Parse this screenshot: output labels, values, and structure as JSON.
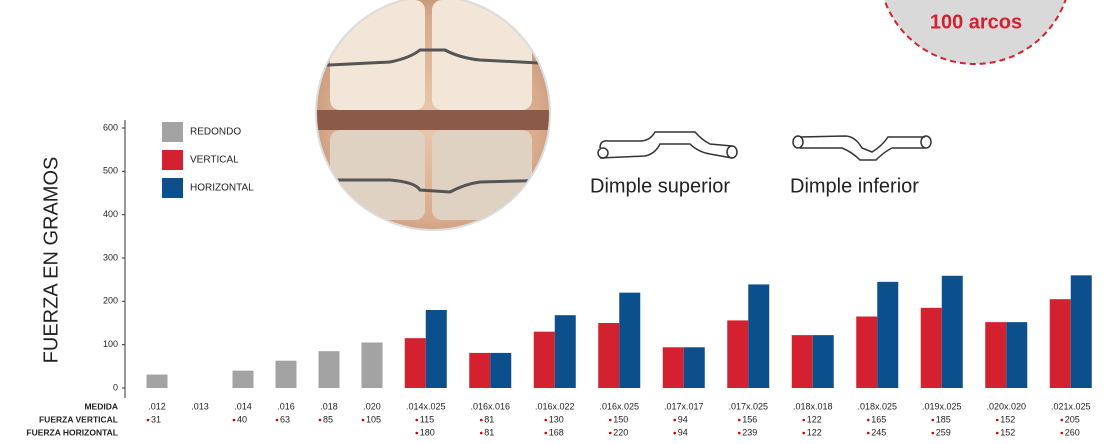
{
  "chart_data": {
    "type": "bar",
    "y_label": "FUERZA EN GRAMOS",
    "categories": [
      ".012",
      ".013",
      ".014",
      ".016",
      ".018",
      ".020",
      ".014x.025",
      ".016x.016",
      ".016x.022",
      ".016x.025",
      ".017x.017",
      ".017x.025",
      ".018x.018",
      ".018x.025",
      ".019x.025",
      ".020x.020",
      ".021x.025"
    ],
    "series": [
      {
        "name": "REDONDO",
        "color": "#a3a3a3",
        "values": [
          31,
          null,
          40,
          63,
          85,
          105,
          null,
          null,
          null,
          null,
          null,
          null,
          null,
          null,
          null,
          null,
          null
        ]
      },
      {
        "name": "VERTICAL",
        "color": "#d4212f",
        "values": [
          null,
          null,
          null,
          null,
          null,
          null,
          115,
          81,
          130,
          150,
          94,
          156,
          122,
          165,
          185,
          152,
          205
        ]
      },
      {
        "name": "HORIZONTAL",
        "color": "#0b4f8c",
        "values": [
          null,
          null,
          null,
          null,
          null,
          null,
          180,
          81,
          168,
          220,
          94,
          239,
          122,
          245,
          259,
          152,
          260
        ]
      }
    ],
    "ylim": [
      0,
      600
    ],
    "yticks": [
      0,
      100,
      200,
      300,
      400,
      500,
      600
    ],
    "row_labels": [
      "MEDIDA",
      "FUERZA VERTICAL",
      "FUERZA HORIZONTAL"
    ],
    "annotations": [
      "Dimple superior",
      "Dimple inferior"
    ],
    "badge": "100 arcos"
  }
}
